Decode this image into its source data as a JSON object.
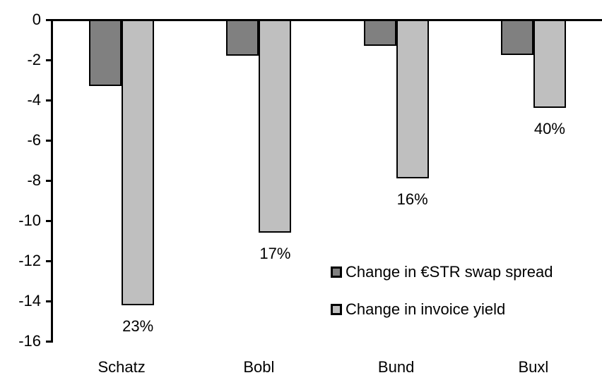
{
  "chart_data": {
    "type": "bar",
    "title": "",
    "xlabel": "",
    "ylabel": "",
    "categories": [
      "Schatz",
      "Bobl",
      "Bund",
      "Buxl"
    ],
    "series": [
      {
        "name": "Change in €STR swap spread",
        "key": "estr-swap-spread",
        "color": "#808080",
        "values": [
          -3.3,
          -1.8,
          -1.3,
          -1.75
        ]
      },
      {
        "name": "Change in invoice yield",
        "key": "invoice-yield",
        "color": "#bfbfbf",
        "values": [
          -14.2,
          -10.6,
          -7.9,
          -4.4
        ],
        "labels": [
          "23%",
          "17%",
          "16%",
          "40%"
        ]
      }
    ],
    "y_axis": {
      "min": -16,
      "max": 0,
      "tick_step": 2,
      "ticks": [
        0,
        -2,
        -4,
        -6,
        -8,
        -10,
        -12,
        -14,
        -16
      ]
    },
    "grid": false,
    "legend_position": "inside-bottom-right",
    "bar_border_color": "#000000",
    "axis_color": "#000000"
  }
}
